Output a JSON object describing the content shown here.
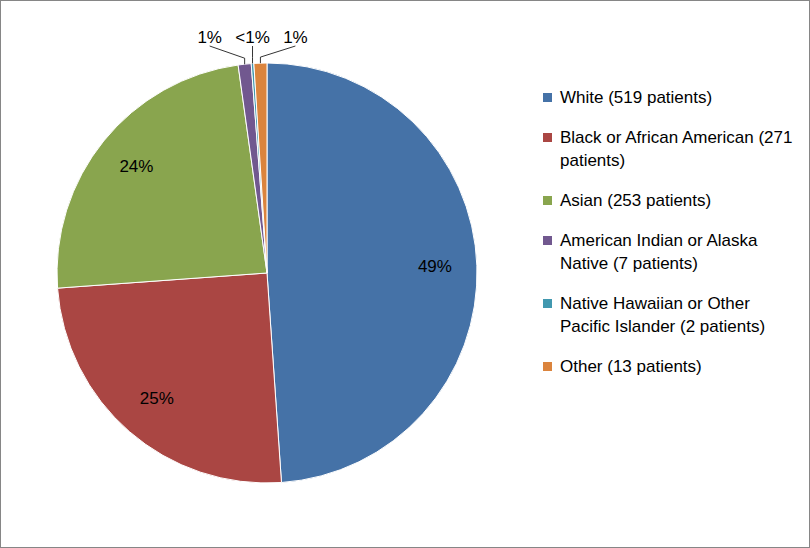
{
  "chart_data": {
    "type": "pie",
    "categories": [
      "White (519 patients)",
      "Black or African American (271 patients)",
      "Asian (253 patients)",
      "American Indian or Alaska Native (7 patients)",
      "Native Hawaiian or Other Pacific Islander (2 patients)",
      "Other (13 patients)"
    ],
    "values": [
      49,
      25,
      24,
      1,
      0.2,
      1
    ],
    "value_labels": [
      "49%",
      "25%",
      "24%",
      "1%",
      "<1%",
      "1%"
    ],
    "colors": [
      "#4572a7",
      "#aa4643",
      "#89a54e",
      "#71588f",
      "#4198af",
      "#db843d"
    ],
    "data_labels": true,
    "legend": "right"
  }
}
